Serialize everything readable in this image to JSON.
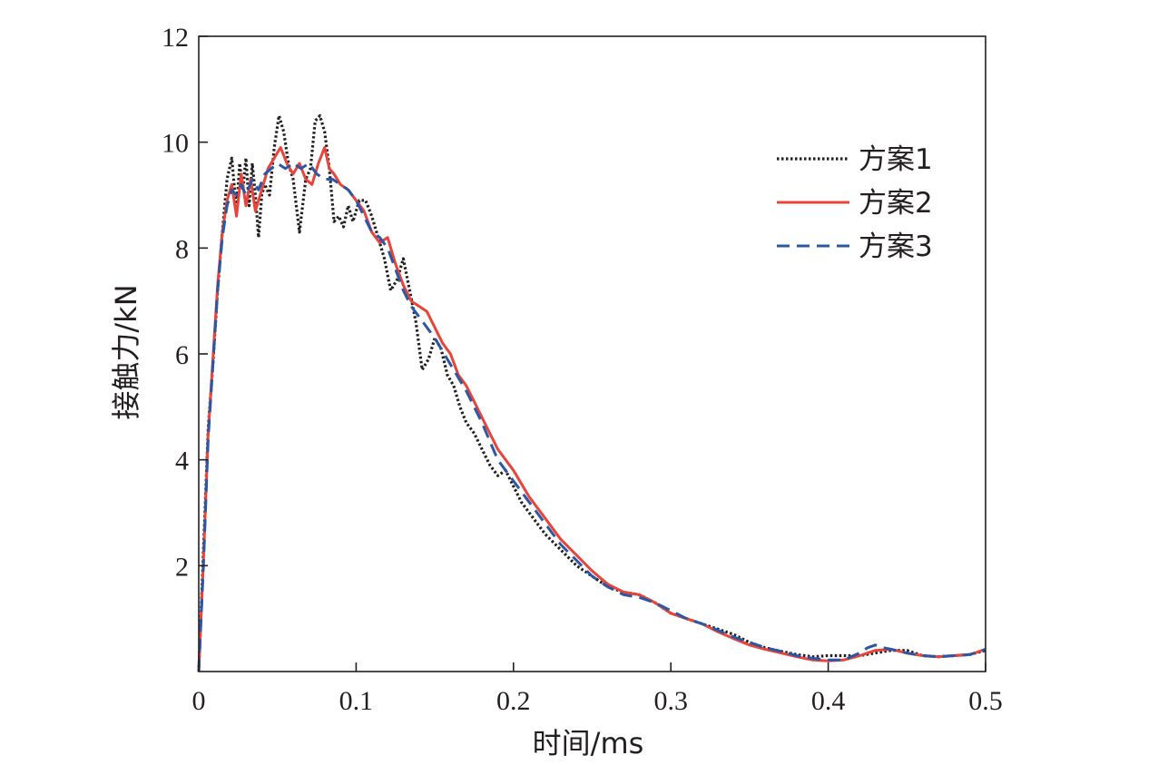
{
  "chart_data": {
    "type": "line",
    "xlabel": "时间/ms",
    "ylabel": "接触力/kN",
    "xlim": [
      0,
      0.5
    ],
    "ylim": [
      0,
      12
    ],
    "xticks": [
      0,
      0.1,
      0.2,
      0.3,
      0.4,
      0.5
    ],
    "xtick_labels": [
      "0",
      "0.1",
      "0.2",
      "0.3",
      "0.4",
      "0.5"
    ],
    "yticks": [
      2,
      4,
      6,
      8,
      10,
      12
    ],
    "ytick_labels": [
      "2",
      "4",
      "6",
      "8",
      "10",
      "12"
    ],
    "legend_position": "right, upper-middle",
    "grid": false,
    "series": [
      {
        "name": "方案1",
        "color": "#231f20",
        "dash": "dotted",
        "x": [
          0,
          0.003,
          0.006,
          0.009,
          0.012,
          0.015,
          0.018,
          0.021,
          0.024,
          0.026,
          0.028,
          0.03,
          0.032,
          0.034,
          0.036,
          0.038,
          0.04,
          0.042,
          0.045,
          0.048,
          0.051,
          0.054,
          0.057,
          0.06,
          0.064,
          0.068,
          0.071,
          0.074,
          0.077,
          0.08,
          0.083,
          0.086,
          0.089,
          0.092,
          0.095,
          0.098,
          0.102,
          0.106,
          0.11,
          0.114,
          0.118,
          0.122,
          0.126,
          0.13,
          0.134,
          0.138,
          0.142,
          0.146,
          0.15,
          0.154,
          0.158,
          0.162,
          0.166,
          0.17,
          0.175,
          0.18,
          0.185,
          0.19,
          0.195,
          0.2,
          0.205,
          0.21,
          0.22,
          0.23,
          0.24,
          0.25,
          0.26,
          0.27,
          0.28,
          0.29,
          0.3,
          0.31,
          0.32,
          0.33,
          0.34,
          0.35,
          0.36,
          0.37,
          0.38,
          0.39,
          0.4,
          0.41,
          0.42,
          0.43,
          0.44,
          0.45,
          0.46,
          0.47,
          0.48,
          0.49,
          0.5
        ],
        "values": [
          0,
          2.3,
          4.6,
          5.8,
          7.2,
          8.3,
          9.3,
          9.7,
          8.7,
          9.6,
          9.1,
          9.7,
          8.8,
          9.6,
          9.0,
          8.2,
          9.0,
          9.2,
          9.0,
          9.9,
          10.5,
          10.2,
          9.6,
          9.3,
          8.3,
          9.3,
          9.5,
          10.4,
          10.5,
          10.2,
          9.5,
          8.5,
          8.6,
          8.4,
          8.8,
          8.5,
          8.9,
          8.9,
          8.6,
          8.2,
          7.8,
          7.2,
          7.4,
          7.8,
          7.2,
          6.6,
          5.7,
          5.9,
          6.3,
          6.1,
          5.6,
          5.4,
          5.0,
          4.7,
          4.5,
          4.2,
          3.9,
          3.7,
          3.8,
          3.5,
          3.2,
          3.0,
          2.6,
          2.3,
          2.0,
          1.8,
          1.6,
          1.5,
          1.45,
          1.3,
          1.1,
          1.0,
          0.9,
          0.8,
          0.7,
          0.55,
          0.45,
          0.38,
          0.32,
          0.28,
          0.3,
          0.3,
          0.3,
          0.35,
          0.4,
          0.4,
          0.3,
          0.28,
          0.3,
          0.32,
          0.4
        ]
      },
      {
        "name": "方案2",
        "color": "#e8443a",
        "dash": "solid",
        "x": [
          0,
          0.003,
          0.006,
          0.009,
          0.012,
          0.015,
          0.018,
          0.021,
          0.024,
          0.027,
          0.03,
          0.033,
          0.036,
          0.04,
          0.044,
          0.048,
          0.052,
          0.056,
          0.06,
          0.064,
          0.068,
          0.072,
          0.076,
          0.08,
          0.083,
          0.086,
          0.09,
          0.095,
          0.1,
          0.105,
          0.11,
          0.115,
          0.12,
          0.125,
          0.13,
          0.135,
          0.14,
          0.145,
          0.15,
          0.155,
          0.16,
          0.165,
          0.17,
          0.175,
          0.18,
          0.19,
          0.2,
          0.21,
          0.22,
          0.23,
          0.24,
          0.25,
          0.26,
          0.27,
          0.28,
          0.29,
          0.3,
          0.31,
          0.32,
          0.33,
          0.34,
          0.35,
          0.36,
          0.37,
          0.38,
          0.39,
          0.4,
          0.41,
          0.42,
          0.43,
          0.44,
          0.45,
          0.46,
          0.47,
          0.48,
          0.49,
          0.5
        ],
        "values": [
          0,
          2.1,
          4.5,
          5.9,
          7.3,
          8.3,
          8.9,
          9.2,
          8.6,
          9.4,
          8.8,
          9.3,
          8.7,
          9.1,
          9.5,
          9.7,
          9.9,
          9.6,
          9.4,
          9.6,
          9.3,
          9.2,
          9.6,
          9.9,
          9.5,
          9.4,
          9.2,
          9.1,
          8.9,
          8.7,
          8.3,
          8.1,
          8.2,
          7.7,
          7.3,
          7.0,
          6.9,
          6.8,
          6.5,
          6.2,
          6.0,
          5.6,
          5.4,
          5.1,
          4.8,
          4.2,
          3.8,
          3.3,
          2.9,
          2.5,
          2.2,
          1.9,
          1.65,
          1.5,
          1.45,
          1.3,
          1.1,
          1.0,
          0.9,
          0.75,
          0.62,
          0.5,
          0.42,
          0.35,
          0.28,
          0.22,
          0.2,
          0.22,
          0.3,
          0.4,
          0.42,
          0.35,
          0.3,
          0.28,
          0.3,
          0.32,
          0.42
        ]
      },
      {
        "name": "方案3",
        "color": "#2a57a6",
        "dash": "dashed",
        "x": [
          0,
          0.003,
          0.006,
          0.009,
          0.012,
          0.015,
          0.018,
          0.021,
          0.024,
          0.027,
          0.03,
          0.034,
          0.038,
          0.042,
          0.046,
          0.05,
          0.055,
          0.06,
          0.065,
          0.07,
          0.075,
          0.08,
          0.085,
          0.09,
          0.095,
          0.1,
          0.105,
          0.11,
          0.115,
          0.12,
          0.125,
          0.13,
          0.135,
          0.14,
          0.145,
          0.15,
          0.16,
          0.17,
          0.18,
          0.19,
          0.2,
          0.21,
          0.22,
          0.23,
          0.24,
          0.25,
          0.26,
          0.27,
          0.28,
          0.29,
          0.3,
          0.31,
          0.32,
          0.33,
          0.34,
          0.35,
          0.36,
          0.37,
          0.38,
          0.39,
          0.4,
          0.41,
          0.42,
          0.425,
          0.43,
          0.435,
          0.44,
          0.45,
          0.46,
          0.47,
          0.48,
          0.49,
          0.5
        ],
        "values": [
          0,
          2.0,
          4.4,
          5.8,
          7.2,
          8.2,
          8.8,
          9.1,
          9.0,
          9.2,
          9.0,
          9.3,
          9.1,
          9.4,
          9.5,
          9.6,
          9.5,
          9.6,
          9.5,
          9.6,
          9.4,
          9.3,
          9.3,
          9.2,
          9.1,
          8.9,
          8.6,
          8.3,
          8.2,
          8.0,
          7.6,
          7.2,
          6.9,
          6.7,
          6.5,
          6.3,
          5.8,
          5.3,
          4.7,
          4.0,
          3.6,
          3.2,
          2.8,
          2.4,
          2.1,
          1.8,
          1.6,
          1.45,
          1.4,
          1.3,
          1.15,
          1.0,
          0.9,
          0.78,
          0.65,
          0.55,
          0.45,
          0.38,
          0.3,
          0.25,
          0.22,
          0.22,
          0.35,
          0.45,
          0.5,
          0.45,
          0.42,
          0.35,
          0.3,
          0.28,
          0.3,
          0.32,
          0.42
        ]
      }
    ]
  }
}
